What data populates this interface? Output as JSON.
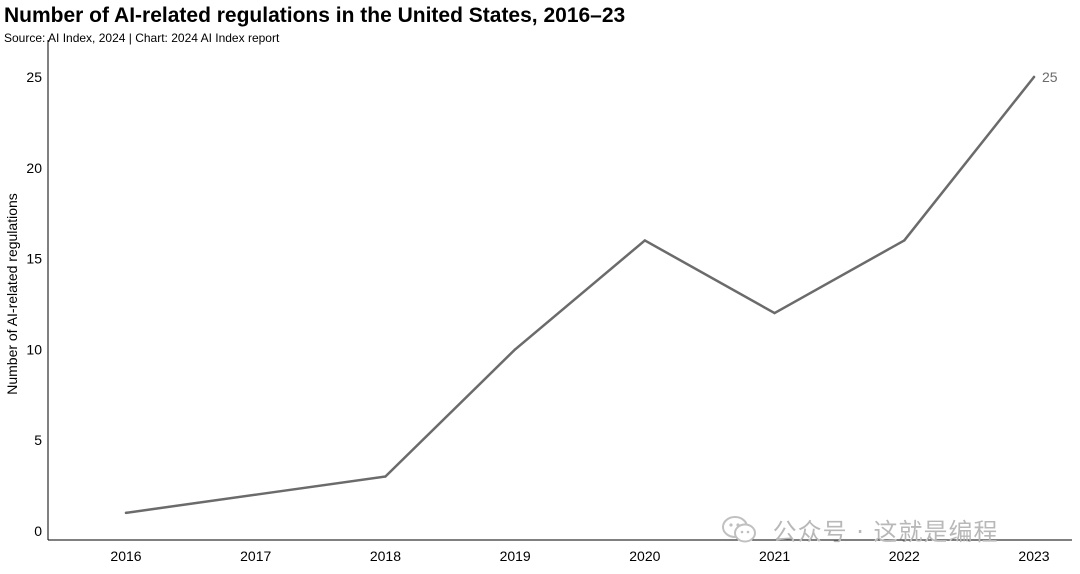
{
  "chart_data": {
    "type": "line",
    "title": "Number of AI-related regulations in the United States, 2016–23",
    "subtitle": "Source: AI Index, 2024 | Chart: 2024 AI Index report",
    "xlabel": "",
    "ylabel": "Number of AI-related regulations",
    "categories": [
      "2016",
      "2017",
      "2018",
      "2019",
      "2020",
      "2021",
      "2022",
      "2023"
    ],
    "series": [
      {
        "values": [
          1,
          2,
          3,
          10,
          16,
          12,
          16,
          25
        ]
      }
    ],
    "ylim": [
      0,
      25
    ],
    "yticks": [
      0,
      5,
      10,
      15,
      20,
      25
    ],
    "data_labels": [
      {
        "index": 7,
        "text": "25"
      }
    ],
    "grid": false,
    "line_color": "#6b6b6b"
  },
  "watermark": {
    "text": "公众号 · 这就是编程",
    "icon": "wechat-icon"
  }
}
